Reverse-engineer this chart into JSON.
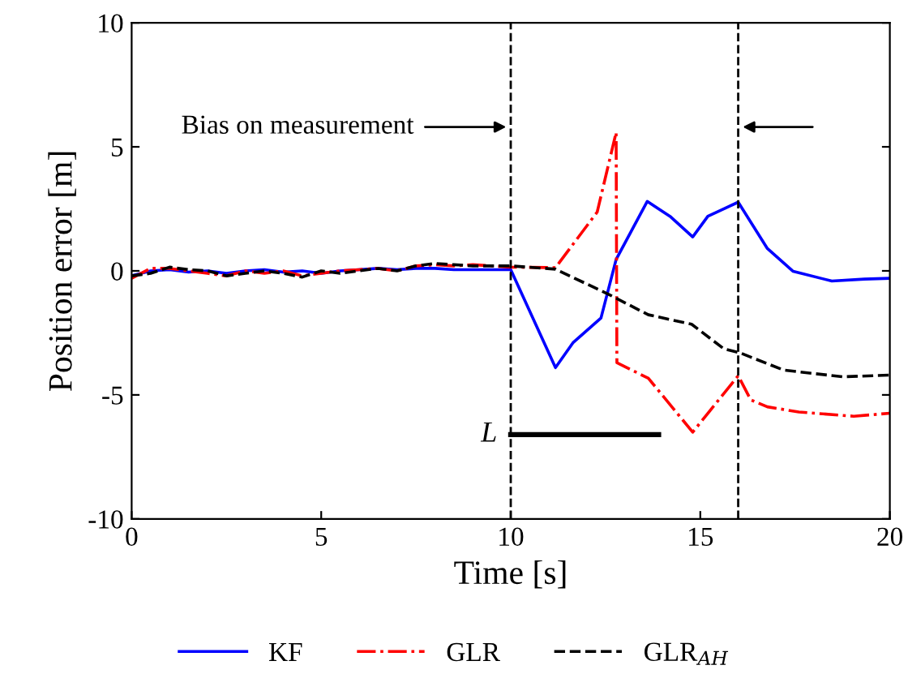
{
  "chart_data": {
    "type": "line",
    "xlabel": "Time [s]",
    "ylabel": "Position error [m]",
    "xlim": [
      0,
      20
    ],
    "xticks": [
      0,
      5,
      10,
      15,
      20
    ],
    "ylim": [
      -10,
      10
    ],
    "yticks": [
      -10,
      -5,
      0,
      5,
      10
    ],
    "grid": false,
    "legend": "bottom",
    "series": [
      {
        "name": "KF",
        "color": "#0000ff",
        "line_style": "solid",
        "x": [
          0,
          0.5,
          1,
          1.5,
          2,
          2.5,
          3,
          3.5,
          4,
          4.5,
          5,
          5.5,
          6,
          6.5,
          7,
          7.5,
          8,
          8.5,
          9,
          9.5,
          10,
          11.18,
          11.64,
          12.38,
          12.78,
          13.6,
          14.2,
          14.8,
          15.2,
          16.0,
          16.77,
          17.45,
          18.47,
          19.33,
          20
        ],
        "values": [
          -0.2,
          0.0,
          0.05,
          -0.05,
          0.0,
          -0.1,
          0.0,
          0.05,
          -0.05,
          0.0,
          -0.1,
          0.0,
          0.05,
          0.1,
          0.05,
          0.1,
          0.1,
          0.05,
          0.05,
          0.05,
          0.05,
          -3.9,
          -2.9,
          -1.9,
          0.46,
          2.8,
          2.2,
          1.37,
          2.2,
          2.77,
          0.9,
          -0.02,
          -0.41,
          -0.33,
          -0.3
        ]
      },
      {
        "name": "GLR",
        "color": "#ff0000",
        "line_style": "dashdot",
        "x": [
          0,
          0.5,
          1,
          1.5,
          2,
          2.5,
          3,
          3.5,
          4,
          4.5,
          5,
          5.5,
          6,
          6.5,
          7,
          7.5,
          8,
          8.5,
          9,
          9.5,
          10,
          11.18,
          12.28,
          12.78,
          12.8,
          13.63,
          14.8,
          16.0,
          16.33,
          16.77,
          17.6,
          19.05,
          20
        ],
        "values": [
          -0.3,
          0.1,
          0.1,
          0.0,
          -0.1,
          -0.2,
          0.0,
          -0.1,
          0.0,
          -0.2,
          -0.1,
          0.0,
          0.05,
          0.1,
          0.0,
          0.2,
          0.25,
          0.2,
          0.25,
          0.2,
          0.15,
          0.13,
          2.37,
          5.58,
          -3.7,
          -4.33,
          -6.5,
          -4.23,
          -5.2,
          -5.48,
          -5.69,
          -5.86,
          -5.74
        ]
      },
      {
        "name": "GLR$_{AH}$",
        "color": "#000000",
        "line_style": "dashed",
        "x": [
          0,
          0.5,
          1,
          1.5,
          2,
          2.5,
          3,
          3.5,
          4,
          4.5,
          5,
          5.5,
          6,
          6.5,
          7,
          7.5,
          8,
          8.5,
          9,
          9.5,
          10,
          11.18,
          12.6,
          13.63,
          14.77,
          15.62,
          16.04,
          17.2,
          18.76,
          20
        ],
        "values": [
          -0.2,
          -0.1,
          0.15,
          0.05,
          0.0,
          -0.2,
          -0.1,
          0.0,
          -0.1,
          -0.25,
          0.0,
          -0.1,
          0.0,
          0.1,
          0.0,
          0.2,
          0.3,
          0.25,
          0.2,
          0.2,
          0.2,
          0.07,
          -0.96,
          -1.77,
          -2.15,
          -3.14,
          -3.3,
          -4.0,
          -4.27,
          -4.2
        ]
      },
      {
        "color": "#000000",
        "line_style": "solid",
        "x": [
          10,
          13.9
        ],
        "values": [
          -6.6,
          -6.6
        ]
      }
    ],
    "ref_lines": [
      {
        "axis": "x",
        "value": 10,
        "color": "#000000",
        "line_style": "dashed"
      },
      {
        "axis": "x",
        "value": 16,
        "color": "#000000",
        "line_style": "dashed"
      }
    ],
    "annotations": [
      "Bias on measurement",
      {
        "text": "L",
        "x": 10,
        "y": -6.6
      }
    ]
  }
}
